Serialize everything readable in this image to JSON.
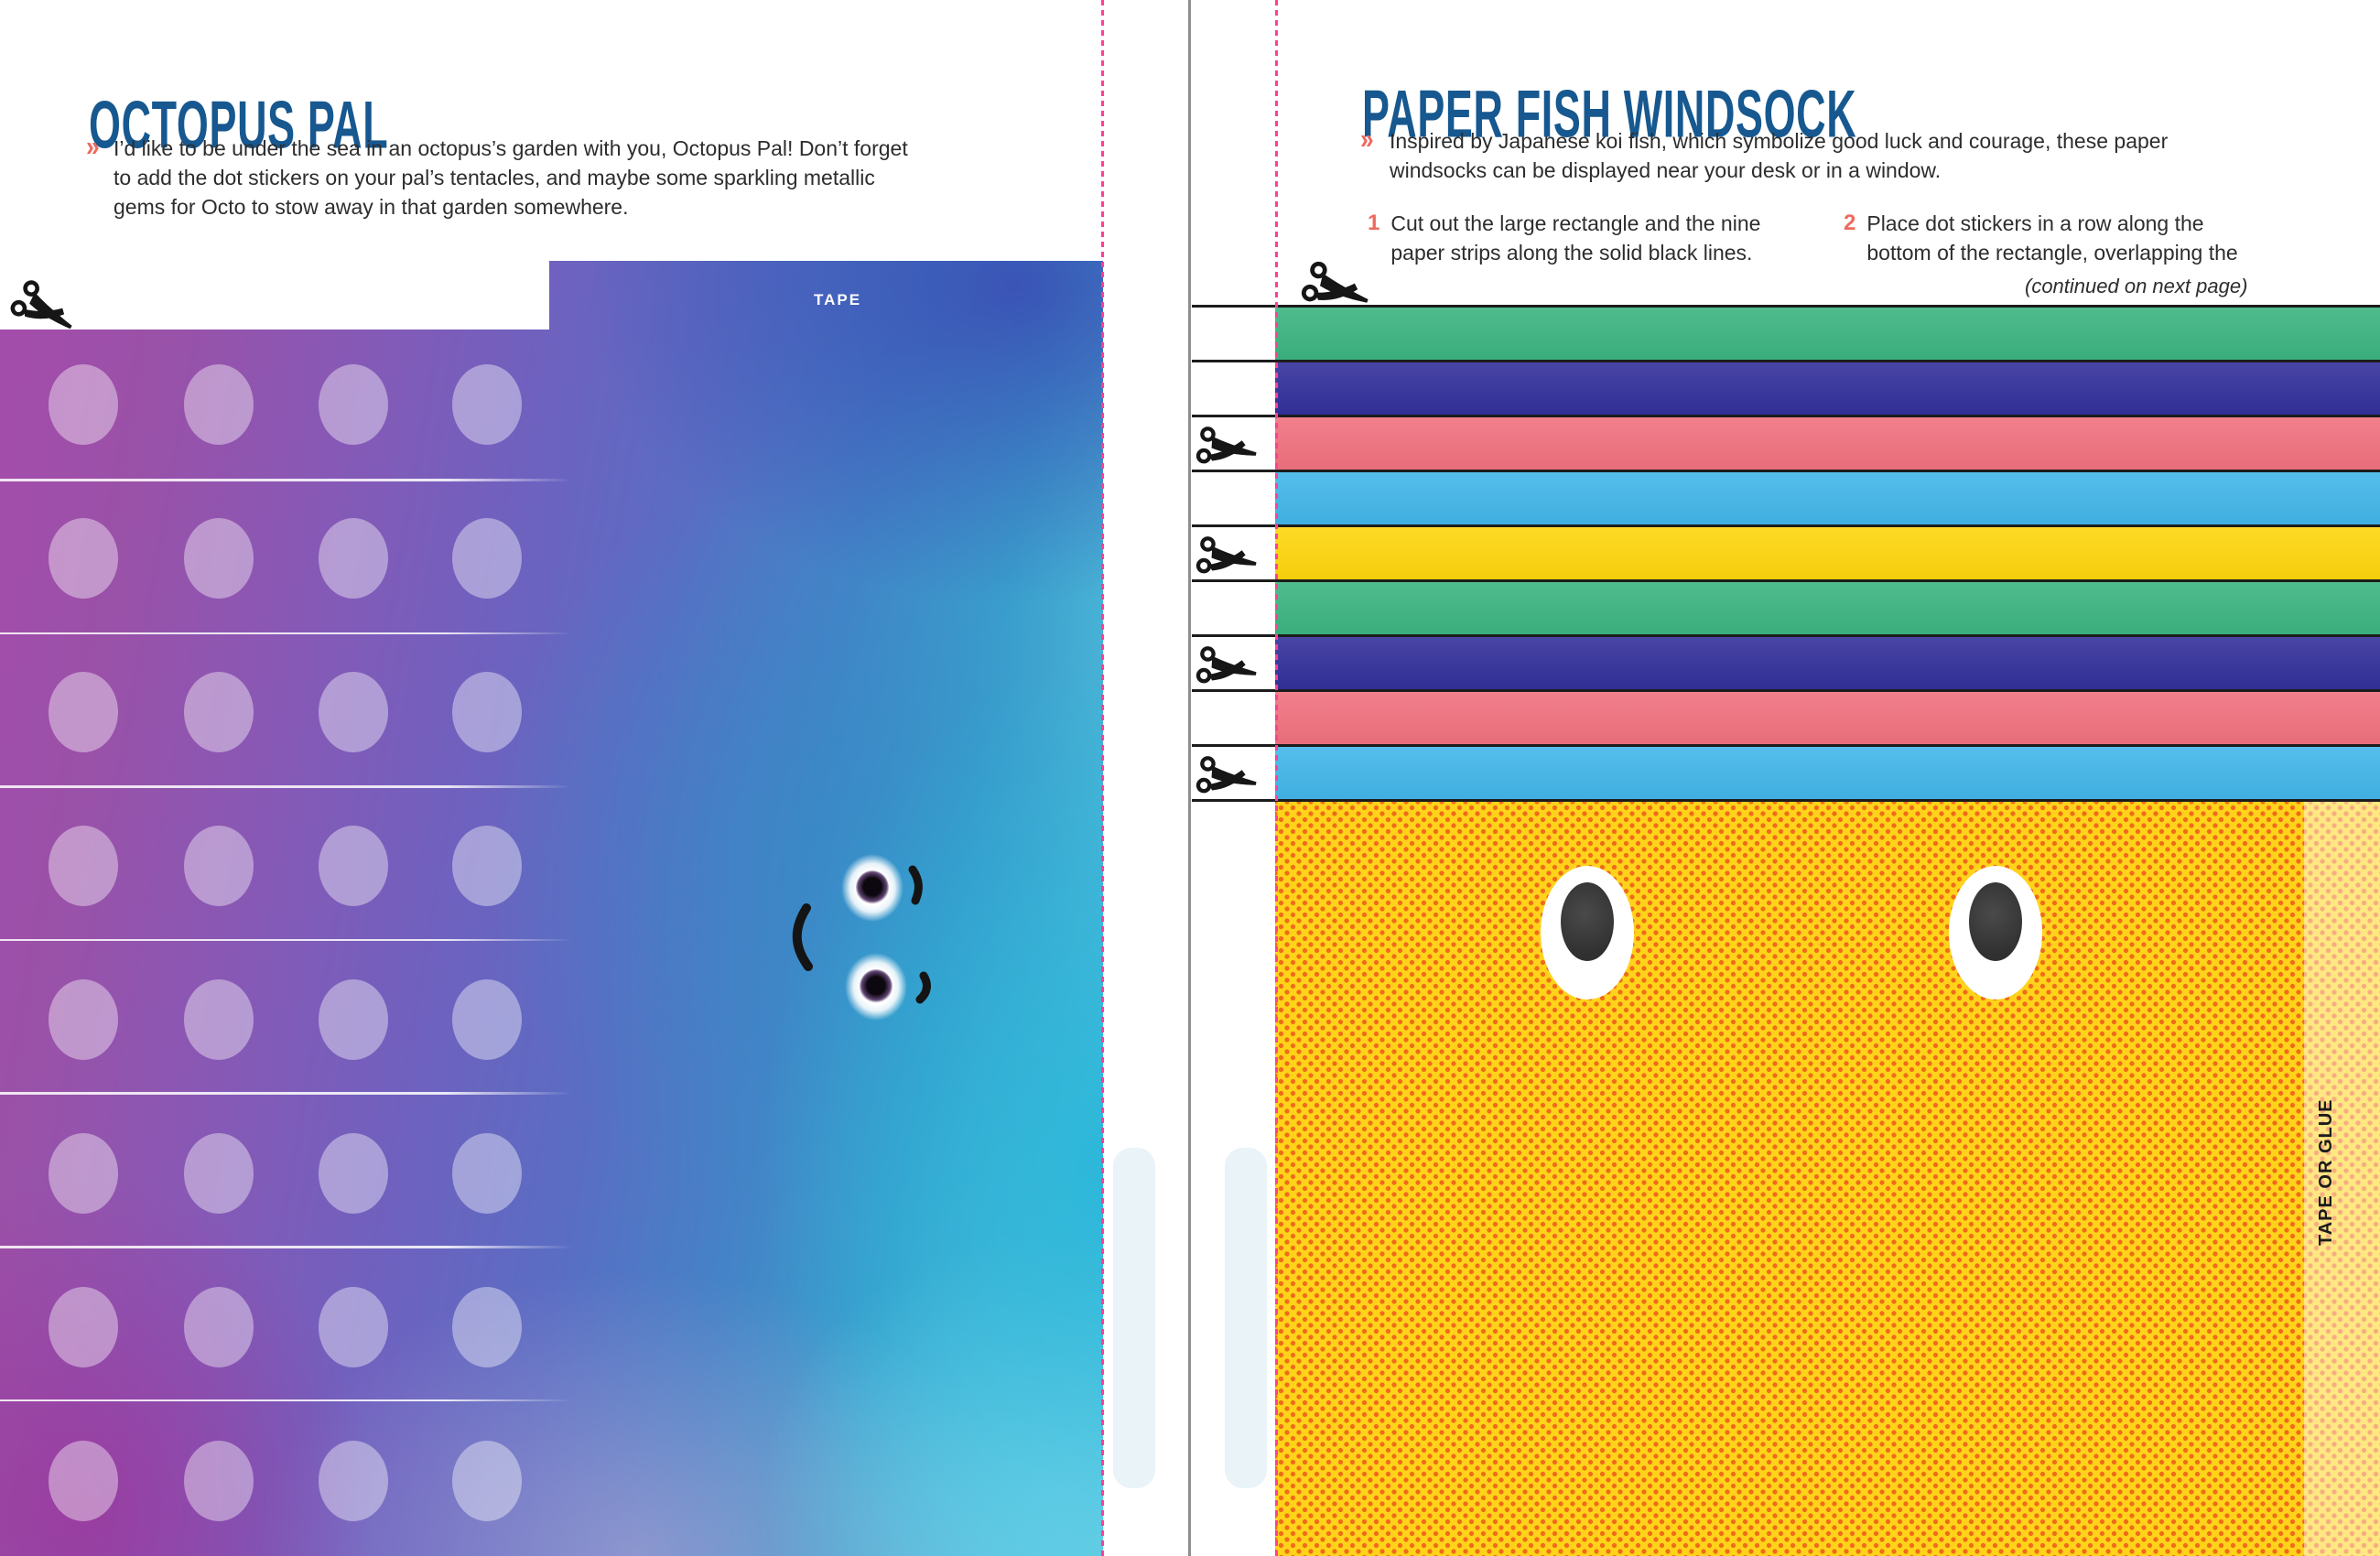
{
  "left_page": {
    "title": "OCTOPUS PAL",
    "chevron": "»",
    "intro_lines": [
      "I’d like to be under the sea in an octopus’s garden with you, Octopus Pal! Don’t forget",
      "to add the dot stickers on your pal’s tentacles, and maybe some sparkling metallic",
      "gems for Octo to stow away in that garden somewhere."
    ],
    "tape_label": "TAPE",
    "sticker_grid": {
      "rows": 8,
      "cols": 4
    },
    "tentacle_line_count": 7
  },
  "right_page": {
    "title": "PAPER FISH WINDSOCK",
    "chevron": "»",
    "intro_lines": [
      "Inspired by Japanese koi fish, which symbolize good luck and courage, these paper",
      "windsocks can be displayed near your desk or in a window."
    ],
    "steps": [
      {
        "number": "1",
        "lines": [
          "Cut out the large rectangle and the nine",
          "paper strips along the solid black lines."
        ]
      },
      {
        "number": "2",
        "lines": [
          "Place dot stickers in a row along the",
          "bottom of the rectangle, overlapping the"
        ]
      }
    ],
    "continued_note": "(continued on next page)",
    "tape_or_glue_label": "TAPE OR GLUE",
    "strip_color_names": [
      "green",
      "navy",
      "pink",
      "cyan",
      "yellow",
      "green",
      "navy",
      "pink",
      "cyan"
    ],
    "strip_colors": [
      "#3cb481",
      "#33309b",
      "#f1717f",
      "#42b6e9",
      "#ffd60d",
      "#3cb481",
      "#33309b",
      "#f1717f",
      "#42b6e9"
    ]
  },
  "colors": {
    "title_blue": "#16588f",
    "body_text": "#2d2d2d",
    "accent_salmon": "#f0695e",
    "cut_line_black": "#1c1c1c",
    "fold_dash_pink": "#ff3f94",
    "page_edge_gray": "#8f8f8f",
    "windsock_yellow": "#ffd31a",
    "halftone_orange": "#ef6b1a"
  }
}
